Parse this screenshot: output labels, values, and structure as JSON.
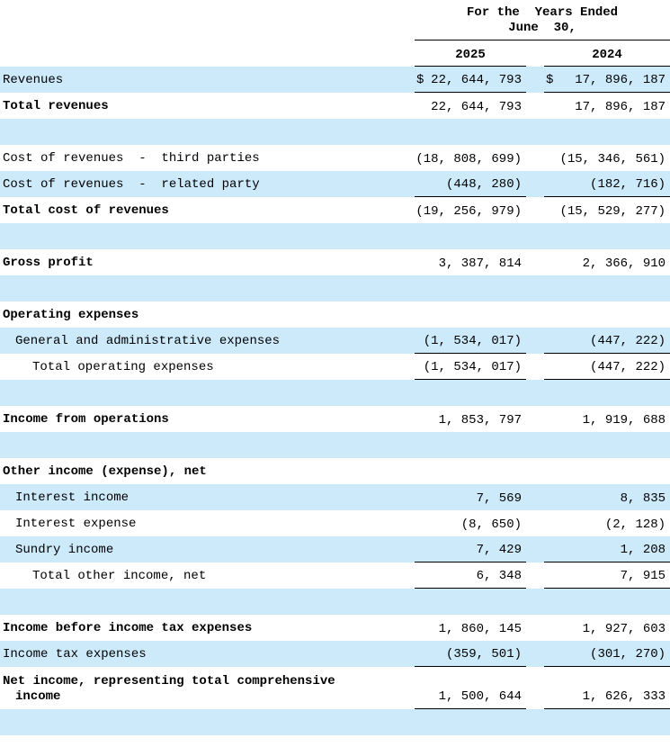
{
  "colors": {
    "row_highlight": "#cdeafb",
    "rule": "#000000",
    "text": "#000000"
  },
  "currency_symbol": "$",
  "header": {
    "period_line1": "For the  Years Ended",
    "period_line2": "June  30,",
    "years": [
      "2025",
      "2024"
    ]
  },
  "table": {
    "rows": [
      {
        "label": "Revenues",
        "bg": "blue",
        "dollar": true,
        "v1": "22, 644, 793",
        "v2": "17, 896, 187",
        "u": true
      },
      {
        "label": "Total revenues",
        "bold": true,
        "bg": "white",
        "v1": "22, 644, 793",
        "v2": "17, 896, 187"
      },
      {
        "blank": true,
        "bg": "blue"
      },
      {
        "label": "Cost of revenues  -  third parties",
        "bg": "white",
        "v1": "(18, 808, 699)",
        "v2": "(15, 346, 561)"
      },
      {
        "label": "Cost of revenues  -  related party",
        "bg": "blue",
        "v1": "(448, 280)",
        "v2": "(182, 716)",
        "u": true
      },
      {
        "label": "Total cost of revenues",
        "bold": true,
        "bg": "white",
        "v1": "(19, 256, 979)",
        "v2": "(15, 529, 277)"
      },
      {
        "blank": true,
        "bg": "blue"
      },
      {
        "label": "Gross profit",
        "bold": true,
        "bg": "white",
        "v1": "3, 387, 814",
        "v2": "2, 366, 910"
      },
      {
        "blank": true,
        "bg": "blue"
      },
      {
        "label": "Operating expenses",
        "bold": true,
        "bg": "white"
      },
      {
        "label": "General and administrative expenses",
        "indent": 1,
        "bg": "blue",
        "v1": "(1, 534, 017)",
        "v2": "(447, 222)",
        "u": true
      },
      {
        "label": "Total operating expenses",
        "indent": 2,
        "bg": "white",
        "v1": "(1, 534, 017)",
        "v2": "(447, 222)",
        "u": true
      },
      {
        "blank": true,
        "bg": "blue"
      },
      {
        "label": "Income from operations",
        "bold": true,
        "bg": "white",
        "v1": "1, 853, 797",
        "v2": "1, 919, 688"
      },
      {
        "blank": true,
        "bg": "blue"
      },
      {
        "label": "Other income (expense), net",
        "bold": true,
        "bg": "white"
      },
      {
        "label": "Interest income",
        "indent": 1,
        "bg": "blue",
        "v1": "7, 569",
        "v2": "8, 835"
      },
      {
        "label": "Interest expense",
        "indent": 1,
        "bg": "white",
        "v1": "(8, 650)",
        "v2": "(2, 128)"
      },
      {
        "label": "Sundry income",
        "indent": 1,
        "bg": "blue",
        "v1": "7, 429",
        "v2": "1, 208",
        "u": true
      },
      {
        "label": "Total other income, net",
        "indent": 2,
        "bg": "white",
        "v1": "6, 348",
        "v2": "7, 915",
        "u": true
      },
      {
        "blank": true,
        "bg": "blue"
      },
      {
        "label": "Income before income tax expenses",
        "bold": true,
        "bg": "white",
        "v1": "1, 860, 145",
        "v2": "1, 927, 603"
      },
      {
        "label": "Income tax expenses",
        "bg": "blue",
        "v1": "(359, 501)",
        "v2": "(301, 270)",
        "u": true
      },
      {
        "label": "Net income, representing total comprehensive",
        "label2": "income",
        "bold": true,
        "bg": "white",
        "v1": "1, 500, 644",
        "v2": "1, 626, 333",
        "u": true,
        "tall": true
      },
      {
        "blank": true,
        "bg": "blue"
      }
    ]
  }
}
